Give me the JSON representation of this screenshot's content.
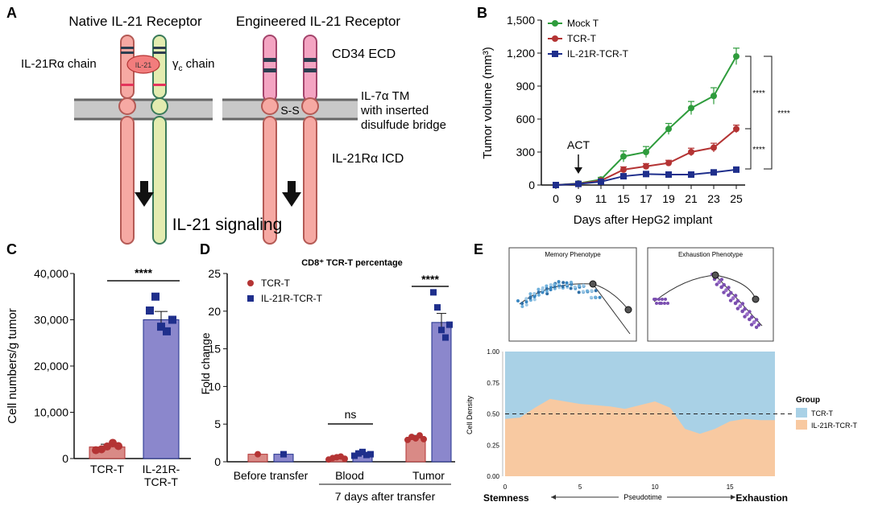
{
  "panels": {
    "A": {
      "letter": "A",
      "native_title": "Native IL-21 Receptor",
      "engineered_title": "Engineered IL-21 Receptor",
      "alpha_chain": "IL-21Rα chain",
      "gamma_chain_main": "γ",
      "gamma_chain_sub": "c",
      "gamma_chain_rest": " chain",
      "ligand": "IL-21",
      "cd34": "CD34 ECD",
      "tm_line1": "IL-7α TM",
      "tm_line2": "with inserted",
      "tm_line3": "disulfude bridge",
      "ss": "S-S",
      "icd": "IL-21Rα ICD",
      "signaling": "IL-21 signaling"
    },
    "B": {
      "letter": "B",
      "act_label": "ACT",
      "sig1": "****",
      "sig2": "****",
      "sig3": "****"
    },
    "C": {
      "letter": "C",
      "sig": "****"
    },
    "D": {
      "letter": "D",
      "sig_blood": "ns",
      "sig_tumor": "****",
      "subtitle": "7 days after transfer"
    },
    "E": {
      "letter": "E",
      "memory_title": "Memory Phenotype",
      "exhaustion_title": "Exhaustion Phenotype",
      "ylabel": "Cell Density",
      "xlabel": "Pseudotime",
      "left_end": "Stemness",
      "right_end": "Exhaustion",
      "legend_title": "Group",
      "legend_items": [
        "TCR-T",
        "IL-21R-TCR-T"
      ]
    }
  },
  "colors": {
    "mock": "#2e9c3c",
    "tcrt": "#b43434",
    "il21r": "#1f2f8c",
    "bar_tcrt_fill": "#d98a86",
    "bar_il21r_fill": "#8b87cc",
    "density_top": "#a9d1e6",
    "density_bottom": "#f8c9a1"
  },
  "chart_data": [
    {
      "id": "B",
      "type": "line",
      "xlabel": "Days after HepG2 implant",
      "ylabel": "Tumor volume (mm³)",
      "x": [
        0,
        9,
        11,
        15,
        17,
        19,
        21,
        23,
        25
      ],
      "ylim": [
        0,
        1500
      ],
      "yticks": [
        "0",
        "300",
        "600",
        "900",
        "1,200",
        "1,500"
      ],
      "legend": "top-left",
      "series": [
        {
          "name": "Mock T",
          "values": [
            0,
            15,
            50,
            260,
            300,
            510,
            700,
            810,
            1170
          ],
          "err": [
            8,
            10,
            20,
            50,
            50,
            50,
            60,
            75,
            75
          ]
        },
        {
          "name": "TCR-T",
          "values": [
            0,
            12,
            40,
            140,
            170,
            200,
            300,
            340,
            510
          ],
          "err": [
            8,
            8,
            15,
            25,
            25,
            25,
            35,
            40,
            35
          ]
        },
        {
          "name": "IL-21R-TCR-T",
          "values": [
            0,
            10,
            30,
            80,
            100,
            95,
            95,
            115,
            140
          ],
          "err": [
            5,
            5,
            10,
            15,
            12,
            12,
            12,
            12,
            12
          ]
        }
      ]
    },
    {
      "id": "C",
      "type": "bar",
      "ylabel": "Cell numbers/g tumor",
      "categories": [
        "TCR-T",
        "IL-21R-\nTCR-T"
      ],
      "values": [
        2500,
        30000
      ],
      "err": [
        600,
        1800
      ],
      "points": [
        [
          1800,
          2000,
          2600,
          3400,
          2700
        ],
        [
          32000,
          35000,
          28500,
          27500,
          30000
        ]
      ],
      "ylim": [
        0,
        40000
      ],
      "yticks": [
        "0",
        "10,000",
        "20,000",
        "30,000",
        "40,000"
      ]
    },
    {
      "id": "D",
      "type": "bar",
      "title": "CD8⁺ TCR-T percentage",
      "ylabel": "Fold change",
      "categories": [
        "Before transfer",
        "Blood",
        "Tumor"
      ],
      "ylim": [
        0,
        25
      ],
      "yticks": [
        "0",
        "5",
        "10",
        "15",
        "20",
        "25"
      ],
      "legend": "top-left",
      "series": [
        {
          "name": "TCR-T",
          "values": [
            1.0,
            0.5,
            3.2
          ],
          "err": [
            0,
            0.1,
            0.3
          ],
          "points": [
            [
              1.0
            ],
            [
              0.3,
              0.5,
              0.6,
              0.7,
              0.4
            ],
            [
              2.9,
              3.3,
              3.1,
              3.5,
              3.0
            ]
          ]
        },
        {
          "name": "IL-21R-TCR-T",
          "values": [
            1.0,
            1.0,
            18.5
          ],
          "err": [
            0,
            0.15,
            1.2
          ],
          "points": [
            [
              1.0
            ],
            [
              0.8,
              1.1,
              1.3,
              0.9,
              1.0
            ],
            [
              22.5,
              20.5,
              17.5,
              16.5,
              18.2
            ]
          ]
        }
      ]
    },
    {
      "id": "E",
      "type": "area",
      "xlabel": "Pseudotime",
      "ylabel": "Cell Density",
      "xlim": [
        0,
        18
      ],
      "xticks": [
        "0",
        "5",
        "10",
        "15"
      ],
      "ylim": [
        0,
        1
      ],
      "yticks": [
        "0.00",
        "0.25",
        "0.50",
        "0.75",
        "1.00"
      ],
      "reference_line": 0.5,
      "x": [
        0,
        1,
        2,
        3,
        4,
        5,
        6,
        7,
        8,
        9,
        10,
        11,
        12,
        13,
        14,
        15,
        16,
        17,
        18
      ],
      "series": [
        {
          "name": "IL-21R-TCR-T",
          "values": [
            0.46,
            0.47,
            0.55,
            0.62,
            0.6,
            0.58,
            0.57,
            0.56,
            0.54,
            0.57,
            0.6,
            0.55,
            0.38,
            0.34,
            0.38,
            0.44,
            0.46,
            0.45,
            0.45
          ]
        },
        {
          "name": "TCR-T",
          "values": [
            0.54,
            0.53,
            0.45,
            0.38,
            0.4,
            0.42,
            0.43,
            0.44,
            0.46,
            0.43,
            0.4,
            0.45,
            0.62,
            0.66,
            0.62,
            0.56,
            0.54,
            0.55,
            0.55
          ]
        }
      ]
    }
  ]
}
